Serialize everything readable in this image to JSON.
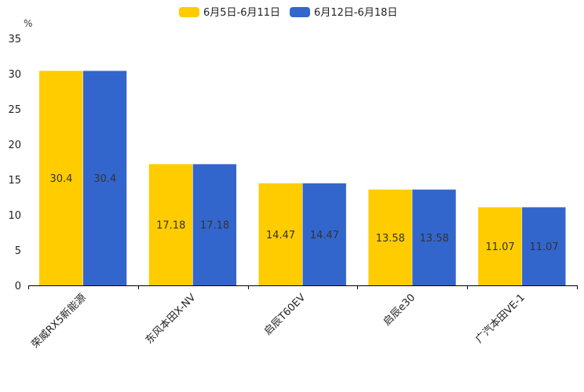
{
  "chart_data": {
    "type": "bar",
    "title": "",
    "xlabel": "",
    "ylabel": "%",
    "ylim": [
      0,
      35
    ],
    "yticks": [
      0,
      5,
      10,
      15,
      20,
      25,
      30,
      35
    ],
    "grid": false,
    "legend_position": "top-center",
    "categories": [
      "荣威RX5新能源",
      "东风本田X-NV",
      "启辰T60EV",
      "启辰e30",
      "广汽本田VE-1"
    ],
    "series": [
      {
        "name": "6月5日-6月11日",
        "color": "#FFCC00",
        "values": [
          30.4,
          17.18,
          14.47,
          13.58,
          11.07
        ]
      },
      {
        "name": "6月12日-6月18日",
        "color": "#3366CC",
        "values": [
          30.4,
          17.18,
          14.47,
          13.58,
          11.07
        ]
      }
    ]
  }
}
